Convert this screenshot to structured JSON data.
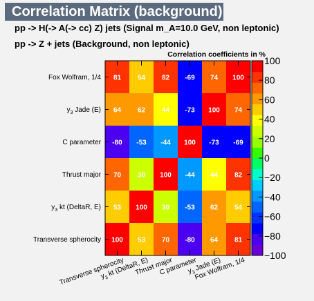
{
  "header": {
    "title": "Correlation Matrix (background)",
    "signal_line": "pp -> H(-> A(-> cc)  Z) jets (Signal m_A=10.0 GeV, non leptonic)",
    "background_line": "pp -> Z + jets (Background, non leptonic)"
  },
  "chart_data": {
    "type": "heatmap",
    "title": "Correlation coefficients in %",
    "x_categories": [
      "Transverse spherocity",
      "y_3 kt (DeltaR, E)",
      "Thrust major",
      "C parameter",
      "y_3 Jade (E)",
      "Fox Wolfram, 1/4"
    ],
    "y_categories_top_to_bottom": [
      "Fox Wolfram, 1/4",
      "y_3 Jade (E)",
      "C parameter",
      "Thrust major",
      "y_3 kt (DeltaR, E)",
      "Transverse spherocity"
    ],
    "matrix_rows_top_to_bottom": [
      [
        81,
        54,
        82,
        -69,
        74,
        100
      ],
      [
        64,
        62,
        44,
        -73,
        100,
        74
      ],
      [
        -80,
        -53,
        -44,
        100,
        -73,
        -69
      ],
      [
        70,
        30,
        100,
        -44,
        44,
        82
      ],
      [
        53,
        100,
        30,
        -53,
        62,
        54
      ],
      [
        100,
        53,
        70,
        -80,
        64,
        81
      ]
    ],
    "zlim": [
      -100,
      100
    ],
    "colorbar_ticks": [
      100,
      80,
      60,
      40,
      20,
      0,
      -20,
      -40,
      -60,
      -80,
      -100
    ],
    "colorbar_tick_labels": [
      "100",
      "80",
      "60",
      "40",
      "20",
      "0",
      "−20",
      "−40",
      "−60",
      "−80",
      "−100"
    ],
    "palette": [
      "#6a00d8",
      "#4b00f2",
      "#0000ff",
      "#0033ff",
      "#0066ff",
      "#0099ff",
      "#00ccff",
      "#00ffcc",
      "#00ff66",
      "#33ff00",
      "#99ff00",
      "#ccff00",
      "#ffff00",
      "#ffcc00",
      "#ff9900",
      "#ff6600",
      "#ff3300",
      "#ff0000"
    ]
  }
}
